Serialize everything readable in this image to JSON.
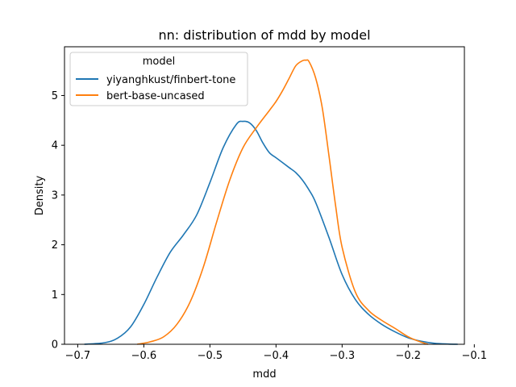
{
  "chart_data": {
    "type": "line",
    "title": "nn: distribution of mdd by model",
    "xlabel": "mdd",
    "ylabel": "Density",
    "xlim": [
      -0.72,
      -0.115
    ],
    "ylim": [
      0,
      5.98
    ],
    "xticks": [
      -0.7,
      -0.6,
      -0.5,
      -0.4,
      -0.3,
      -0.2,
      -0.1
    ],
    "xtick_labels": [
      "−0.7",
      "−0.6",
      "−0.5",
      "−0.4",
      "−0.3",
      "−0.2",
      "−0.1"
    ],
    "yticks": [
      0,
      1,
      2,
      3,
      4,
      5
    ],
    "ytick_labels": [
      "0",
      "1",
      "2",
      "3",
      "4",
      "5"
    ],
    "grid": false,
    "legend": {
      "title": "model",
      "placement": "top-left"
    },
    "series": [
      {
        "name": "yiyanghkust/finbert-tone",
        "color": "#1f77b4",
        "x": [
          -0.69,
          -0.66,
          -0.64,
          -0.62,
          -0.6,
          -0.58,
          -0.56,
          -0.54,
          -0.52,
          -0.5,
          -0.48,
          -0.46,
          -0.45,
          -0.44,
          -0.43,
          -0.42,
          -0.41,
          -0.4,
          -0.39,
          -0.38,
          -0.37,
          -0.36,
          -0.35,
          -0.34,
          -0.32,
          -0.3,
          -0.28,
          -0.26,
          -0.24,
          -0.22,
          -0.2,
          -0.18,
          -0.16,
          -0.14,
          -0.125
        ],
        "y": [
          0.0,
          0.03,
          0.12,
          0.35,
          0.8,
          1.35,
          1.85,
          2.2,
          2.6,
          3.25,
          3.95,
          4.42,
          4.48,
          4.45,
          4.3,
          4.05,
          3.85,
          3.75,
          3.65,
          3.55,
          3.45,
          3.3,
          3.1,
          2.85,
          2.15,
          1.4,
          0.9,
          0.6,
          0.4,
          0.25,
          0.13,
          0.06,
          0.02,
          0.005,
          0.0
        ]
      },
      {
        "name": "bert-base-uncased",
        "color": "#ff7f0e",
        "x": [
          -0.61,
          -0.59,
          -0.57,
          -0.55,
          -0.53,
          -0.51,
          -0.49,
          -0.47,
          -0.45,
          -0.43,
          -0.41,
          -0.4,
          -0.39,
          -0.38,
          -0.37,
          -0.36,
          -0.355,
          -0.35,
          -0.34,
          -0.33,
          -0.32,
          -0.31,
          -0.3,
          -0.28,
          -0.26,
          -0.24,
          -0.22,
          -0.2,
          -0.18,
          -0.17
        ],
        "y": [
          0.0,
          0.05,
          0.15,
          0.4,
          0.85,
          1.55,
          2.45,
          3.3,
          3.95,
          4.35,
          4.7,
          4.88,
          5.1,
          5.35,
          5.6,
          5.7,
          5.71,
          5.68,
          5.35,
          4.75,
          3.8,
          2.8,
          1.95,
          1.05,
          0.68,
          0.48,
          0.32,
          0.15,
          0.04,
          0.0
        ]
      }
    ]
  }
}
